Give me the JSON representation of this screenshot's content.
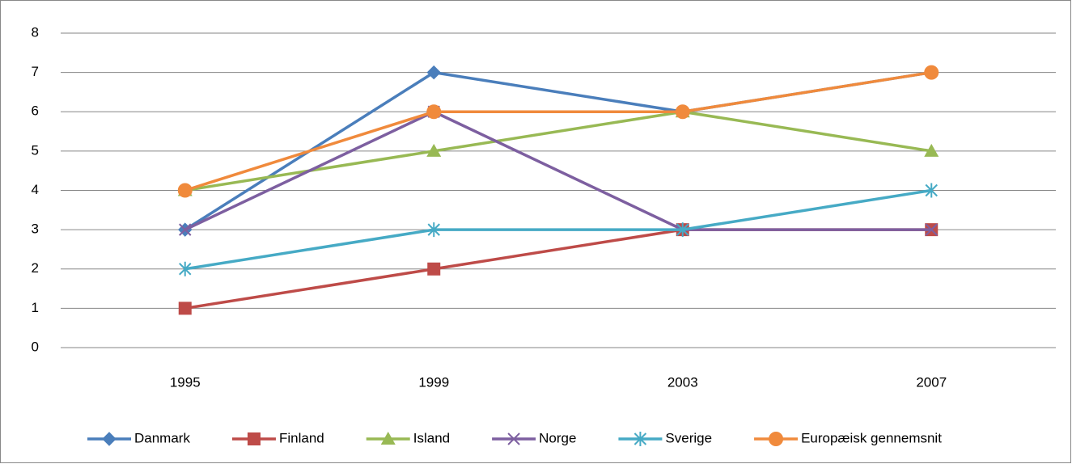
{
  "chart_data": {
    "type": "line",
    "categories": [
      "1995",
      "1999",
      "2003",
      "2007"
    ],
    "series": [
      {
        "name": "Danmark",
        "color": "#4a7ebb",
        "marker": "diamond",
        "values": [
          3,
          7,
          6,
          7
        ]
      },
      {
        "name": "Finland",
        "color": "#be4b48",
        "marker": "square",
        "values": [
          1,
          2,
          3,
          3
        ]
      },
      {
        "name": "Island",
        "color": "#98b954",
        "marker": "triangle",
        "values": [
          4,
          5,
          6,
          5
        ]
      },
      {
        "name": "Norge",
        "color": "#7d5fa0",
        "marker": "x",
        "values": [
          3,
          6,
          3,
          3
        ]
      },
      {
        "name": "Sverige",
        "color": "#46aac5",
        "marker": "asterisk",
        "values": [
          2,
          3,
          3,
          4
        ]
      },
      {
        "name": "Europæisk gennemsnit",
        "color": "#f08a3c",
        "marker": "circle",
        "values": [
          4,
          6,
          6,
          7
        ]
      }
    ],
    "ylim": [
      0,
      8
    ],
    "yticks": [
      0,
      1,
      2,
      3,
      4,
      5,
      6,
      7,
      8
    ],
    "grid": true,
    "legend": "bottom"
  }
}
